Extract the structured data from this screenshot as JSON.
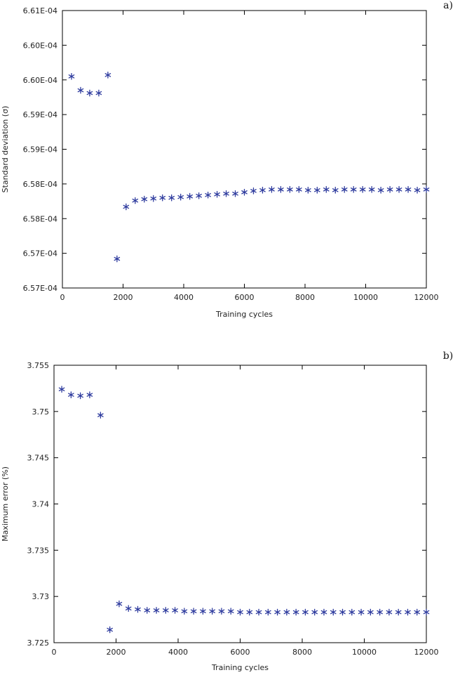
{
  "chart_data": [
    {
      "type": "scatter",
      "panel_label": "a)",
      "title": "",
      "xlabel": "Training cycles",
      "ylabel": "Standard deviation (σ)",
      "xlim": [
        0,
        12000
      ],
      "ylim": [
        0.000657,
        0.000661
      ],
      "xticks": [
        0,
        2000,
        4000,
        6000,
        8000,
        10000,
        12000
      ],
      "xtick_labels": [
        "0",
        "2000",
        "4000",
        "6000",
        "8000",
        "10000",
        "12000"
      ],
      "yticks": [
        0.000657,
        0.0006575,
        0.000658,
        0.0006585,
        0.000659,
        0.0006595,
        0.00066,
        0.0006605,
        0.000661
      ],
      "ytick_labels": [
        "6.57E-04",
        "6.57E-04",
        "6.58E-04",
        "6.58E-04",
        "6.59E-04",
        "6.59E-04",
        "6.60E-04",
        "6.60E-04",
        "6.61E-04"
      ],
      "marker_color": "#2e3b9e",
      "series": [
        {
          "name": "Standard deviation",
          "x": [
            300,
            600,
            900,
            1200,
            1500,
            1800,
            2100,
            2400,
            2700,
            3000,
            3300,
            3600,
            3900,
            4200,
            4500,
            4800,
            5100,
            5400,
            5700,
            6000,
            6300,
            6600,
            6900,
            7200,
            7500,
            7800,
            8100,
            8400,
            8700,
            9000,
            9300,
            9600,
            9900,
            10200,
            10500,
            10800,
            11100,
            11400,
            11700,
            12000
          ],
          "y": [
            0.00066005,
            0.00065985,
            0.00065981,
            0.00065981,
            0.00066007,
            0.00065742,
            0.00065817,
            0.00065826,
            0.00065828,
            0.00065829,
            0.0006583,
            0.0006583,
            0.00065831,
            0.00065832,
            0.00065833,
            0.00065834,
            0.00065835,
            0.00065836,
            0.00065836,
            0.00065838,
            0.0006584,
            0.00065841,
            0.00065842,
            0.00065842,
            0.00065842,
            0.00065842,
            0.00065841,
            0.00065841,
            0.00065842,
            0.00065841,
            0.00065842,
            0.00065842,
            0.00065842,
            0.00065842,
            0.00065841,
            0.00065842,
            0.00065842,
            0.00065842,
            0.00065841,
            0.00065842
          ]
        }
      ]
    },
    {
      "type": "scatter",
      "panel_label": "b)",
      "title": "",
      "xlabel": "Training cycles",
      "ylabel": "Maximum error (%)",
      "xlim": [
        0,
        12000
      ],
      "ylim": [
        3.725,
        3.755
      ],
      "xticks": [
        0,
        2000,
        4000,
        6000,
        8000,
        10000,
        12000
      ],
      "xtick_labels": [
        "0",
        "2000",
        "4000",
        "6000",
        "8000",
        "10000",
        "12000"
      ],
      "yticks": [
        3.725,
        3.73,
        3.735,
        3.74,
        3.745,
        3.75,
        3.755
      ],
      "ytick_labels": [
        "3.725",
        "3.73",
        "3.735",
        "3.74",
        "3.745",
        "3.75",
        "3.755"
      ],
      "marker_color": "#2e3b9e",
      "series": [
        {
          "name": "Maximum error",
          "x": [
            250,
            550,
            850,
            1150,
            1500,
            1800,
            2100,
            2400,
            2700,
            3000,
            3300,
            3600,
            3900,
            4200,
            4500,
            4800,
            5100,
            5400,
            5700,
            6000,
            6300,
            6600,
            6900,
            7200,
            7500,
            7800,
            8100,
            8400,
            8700,
            9000,
            9300,
            9600,
            9900,
            10200,
            10500,
            10800,
            11100,
            11400,
            11700,
            12000
          ],
          "y": [
            3.7524,
            3.7518,
            3.7517,
            3.7518,
            3.7496,
            3.7264,
            3.7292,
            3.7287,
            3.7286,
            3.7285,
            3.7285,
            3.7285,
            3.7285,
            3.7284,
            3.7284,
            3.7284,
            3.7284,
            3.7284,
            3.7284,
            3.7283,
            3.7283,
            3.7283,
            3.7283,
            3.7283,
            3.7283,
            3.7283,
            3.7283,
            3.7283,
            3.7283,
            3.7283,
            3.7283,
            3.7283,
            3.7283,
            3.7283,
            3.7283,
            3.7283,
            3.7283,
            3.7283,
            3.7283,
            3.7283
          ]
        }
      ]
    }
  ]
}
